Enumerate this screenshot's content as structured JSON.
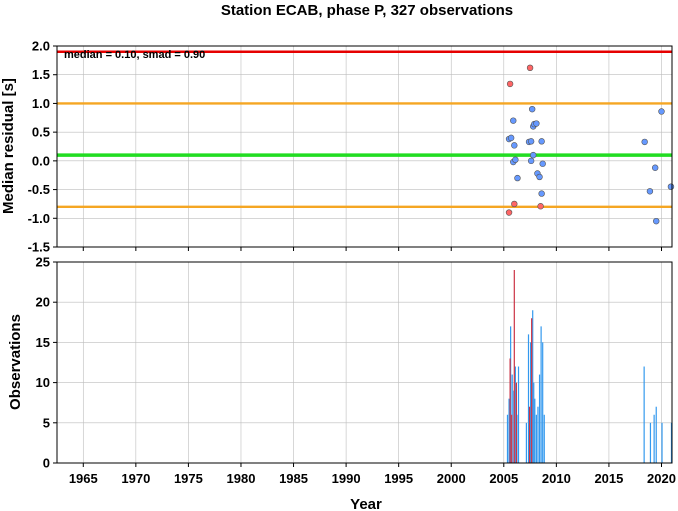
{
  "chart_data": [
    {
      "type": "scatter",
      "title": "Station ECAB, phase P, 327 observations",
      "xlabel": "",
      "ylabel": "Median residual [s]",
      "annotation": "median = 0.10, smad = 0.90",
      "xlim": [
        1962.5,
        2021
      ],
      "ylim": [
        -1.5,
        2.0
      ],
      "yticks": [
        "2.0",
        "1.5",
        "1.0",
        "0.5",
        "0.0",
        "-0.5",
        "-1.0",
        "-1.5"
      ],
      "grid": true,
      "reference_lines": [
        {
          "name": "median",
          "y": 0.1,
          "color": "#22dd22"
        },
        {
          "name": "median + smad",
          "y": 1.0,
          "color": "#f5a623"
        },
        {
          "name": "median - smad",
          "y": -0.8,
          "color": "#f5a623"
        },
        {
          "name": "upper limit",
          "y": 1.9,
          "color": "#e60000"
        }
      ],
      "series": [
        {
          "color": "#6699ff",
          "points": [
            [
              2005.5,
              0.38
            ],
            [
              2005.7,
              0.4
            ],
            [
              2005.9,
              0.7
            ],
            [
              2006.0,
              0.27
            ],
            [
              2005.9,
              -0.02
            ],
            [
              2006.1,
              0.02
            ],
            [
              2006.3,
              -0.3
            ],
            [
              2007.4,
              0.33
            ],
            [
              2007.6,
              0.34
            ],
            [
              2007.7,
              0.9
            ],
            [
              2007.8,
              0.6
            ],
            [
              2007.9,
              0.64
            ],
            [
              2008.1,
              0.65
            ],
            [
              2007.8,
              0.1
            ],
            [
              2007.6,
              0.0
            ],
            [
              2008.2,
              -0.22
            ],
            [
              2008.4,
              -0.28
            ],
            [
              2008.6,
              0.34
            ],
            [
              2008.7,
              -0.05
            ],
            [
              2008.6,
              -0.57
            ],
            [
              2018.4,
              0.33
            ],
            [
              2018.9,
              -0.53
            ],
            [
              2019.4,
              -0.12
            ],
            [
              2019.5,
              -1.05
            ],
            [
              2020.0,
              0.86
            ],
            [
              2020.9,
              -0.45
            ]
          ]
        },
        {
          "color": "#ff6666",
          "points": [
            [
              2005.6,
              1.34
            ],
            [
              2007.5,
              1.62
            ],
            [
              2006.0,
              -0.75
            ],
            [
              2005.5,
              -0.9
            ],
            [
              2008.5,
              -0.79
            ]
          ]
        }
      ]
    },
    {
      "type": "bar",
      "xlabel": "Year",
      "ylabel": "Observations",
      "xlim": [
        1962.5,
        2021
      ],
      "ylim": [
        0,
        25
      ],
      "yticks": [
        "25",
        "20",
        "15",
        "10",
        "5",
        "0"
      ],
      "xticks": [
        "1965",
        "1970",
        "1975",
        "1980",
        "1985",
        "1990",
        "1995",
        "2000",
        "2005",
        "2010",
        "2015",
        "2020"
      ],
      "grid": true,
      "series": [
        {
          "color": "#3399ee",
          "bars": [
            [
              2005.35,
              6
            ],
            [
              2005.5,
              8
            ],
            [
              2005.65,
              17
            ],
            [
              2005.8,
              11
            ],
            [
              2005.95,
              9
            ],
            [
              2006.1,
              12
            ],
            [
              2006.25,
              6
            ],
            [
              2006.4,
              12
            ],
            [
              2007.15,
              5
            ],
            [
              2007.35,
              16
            ],
            [
              2007.55,
              15
            ],
            [
              2007.75,
              19
            ],
            [
              2007.85,
              10
            ],
            [
              2007.95,
              8
            ],
            [
              2008.1,
              6
            ],
            [
              2008.25,
              7
            ],
            [
              2008.4,
              11
            ],
            [
              2008.55,
              17
            ],
            [
              2008.7,
              15
            ],
            [
              2008.85,
              6
            ],
            [
              2018.35,
              12
            ],
            [
              2018.95,
              5
            ],
            [
              2019.3,
              6
            ],
            [
              2019.5,
              7
            ],
            [
              2020.05,
              5
            ],
            [
              2020.95,
              5
            ]
          ]
        },
        {
          "color": "#cc3344",
          "bars": [
            [
              2005.6,
              13
            ],
            [
              2005.75,
              6
            ],
            [
              2006.0,
              24
            ],
            [
              2006.2,
              10
            ],
            [
              2007.45,
              7
            ],
            [
              2007.65,
              18
            ]
          ]
        }
      ]
    }
  ]
}
